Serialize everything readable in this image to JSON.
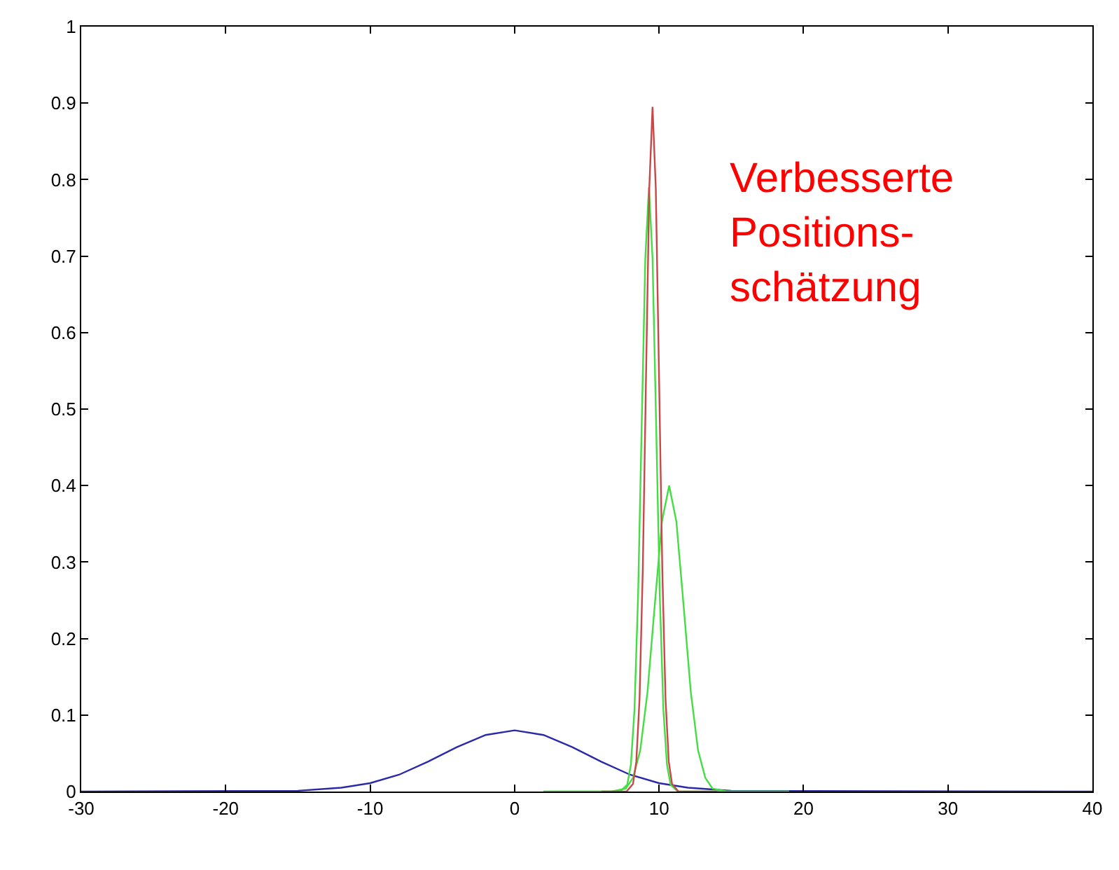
{
  "chart_data": {
    "type": "line",
    "xlim": [
      -30,
      40
    ],
    "xticks": [
      -30,
      -20,
      -10,
      0,
      10,
      20,
      30,
      40
    ],
    "ylim": [
      0,
      1
    ],
    "yticks": [
      0,
      0.1,
      0.2,
      0.3,
      0.4,
      0.5,
      0.6,
      0.7,
      0.8,
      0.9,
      1
    ],
    "marker": "none",
    "line_style": "solid",
    "annotations": [
      "Verbesserte\nPositions-\nschätzung"
    ],
    "series": [
      {
        "color": "#2a2aa8",
        "x": [
          -30,
          -15,
          -12,
          -10,
          -8,
          -6,
          -4,
          -2,
          0,
          2,
          4,
          6,
          8,
          10,
          12,
          15,
          40
        ],
        "values": [
          0,
          0.001,
          0.005,
          0.011,
          0.022,
          0.039,
          0.058,
          0.074,
          0.08,
          0.074,
          0.058,
          0.039,
          0.022,
          0.011,
          0.005,
          0.001,
          0
        ]
      },
      {
        "color": "#44dd44",
        "x": [
          2,
          7.3,
          7.8,
          8.05,
          8.3,
          8.55,
          8.8,
          9.05,
          9.3,
          9.55,
          9.8,
          10.05,
          10.3,
          10.55,
          10.8,
          11.3,
          19
        ],
        "values": [
          0,
          0,
          0.009,
          0.035,
          0.107,
          0.257,
          0.479,
          0.697,
          0.79,
          0.697,
          0.479,
          0.257,
          0.107,
          0.035,
          0.009,
          0,
          0
        ]
      },
      {
        "color": "#44dd44",
        "x": [
          2,
          6.7,
          7.7,
          8.2,
          8.7,
          9.2,
          9.7,
          10.2,
          10.7,
          11.2,
          11.7,
          12.2,
          12.7,
          13.2,
          13.7,
          14.7,
          19
        ],
        "values": [
          0,
          0,
          0.004,
          0.018,
          0.054,
          0.13,
          0.243,
          0.353,
          0.4,
          0.353,
          0.243,
          0.13,
          0.054,
          0.018,
          0.004,
          0,
          0
        ]
      },
      {
        "color": "#c84848",
        "x": [
          6,
          7.75,
          8.2,
          8.425,
          8.65,
          8.875,
          9.1,
          9.325,
          9.55,
          9.775,
          10,
          10.225,
          10.45,
          10.675,
          10.9,
          11.35,
          14
        ],
        "values": [
          0,
          0,
          0.01,
          0.039,
          0.121,
          0.291,
          0.543,
          0.789,
          0.895,
          0.789,
          0.543,
          0.291,
          0.121,
          0.039,
          0.01,
          0,
          0
        ]
      }
    ]
  }
}
